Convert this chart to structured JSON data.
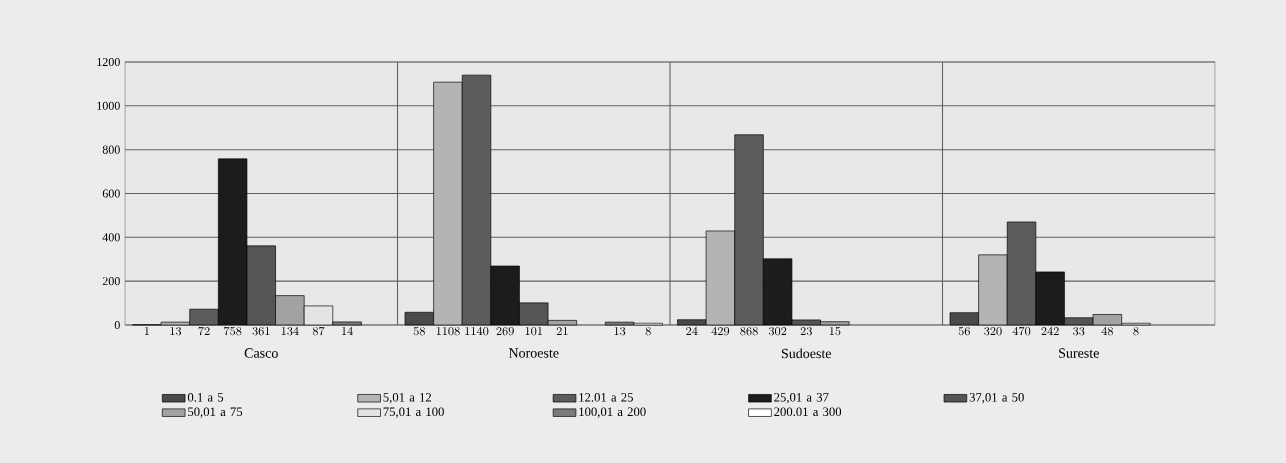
{
  "chart_data": {
    "type": "bar",
    "categories": [
      "Casco",
      "Noroeste",
      "Sudoeste",
      "Sureste"
    ],
    "series": [
      {
        "name": "0.1 a 5",
        "color": "#4a4a4a",
        "values": [
          1,
          58,
          24,
          56
        ]
      },
      {
        "name": "5,01 a 12",
        "color": "#b4b4b4",
        "values": [
          13,
          1108,
          429,
          320
        ]
      },
      {
        "name": "12.01 a 25",
        "color": "#5c5c5c",
        "values": [
          72,
          1140,
          868,
          470
        ]
      },
      {
        "name": "25,01 a 37",
        "color": "#1c1c1c",
        "values": [
          758,
          269,
          302,
          242
        ]
      },
      {
        "name": "37,01 a 50",
        "color": "#555555",
        "values": [
          361,
          101,
          23,
          33
        ]
      },
      {
        "name": "50,01 a 75",
        "color": "#a2a2a2",
        "values": [
          134,
          21,
          15,
          48
        ]
      },
      {
        "name": "75,01 a 100",
        "color": "#e4e4e4",
        "values": [
          87,
          null,
          null,
          8
        ]
      },
      {
        "name": "100,01 a 200",
        "color": "#7a7a7a",
        "values": [
          14,
          13,
          null,
          null
        ]
      },
      {
        "name": "200.01 a 300",
        "color": "#ffffff",
        "values": [
          null,
          8,
          null,
          null
        ]
      }
    ],
    "ylim": [
      0,
      1200
    ],
    "yticks": [
      0,
      200,
      400,
      600,
      800,
      1000,
      1200
    ],
    "grid": true,
    "legend": "bottom",
    "data_labels": true
  }
}
